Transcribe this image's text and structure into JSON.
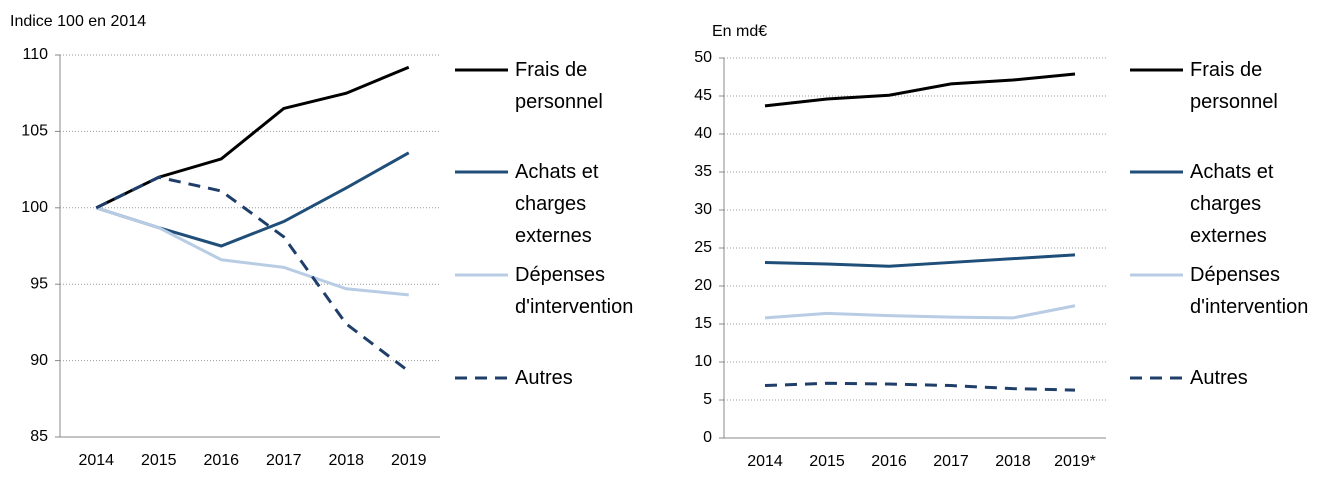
{
  "chart_data": [
    {
      "type": "line",
      "y_label": "Indice 100 en 2014",
      "categories": [
        "2014",
        "2015",
        "2016",
        "2017",
        "2018",
        "2019"
      ],
      "ylim": [
        85,
        110
      ],
      "yticks": [
        85,
        90,
        95,
        100,
        105,
        110
      ],
      "grid": true,
      "series": [
        {
          "name": "Frais de personnel",
          "color": "#000000",
          "values": [
            100,
            102,
            103.2,
            106.5,
            107.5,
            109.2
          ]
        },
        {
          "name": "Achats et charges externes",
          "color": "#1f4e79",
          "values": [
            100,
            98.7,
            97.5,
            99.1,
            101.3,
            103.6
          ]
        },
        {
          "name": "Dépenses d'intervention",
          "color": "#b8cce4",
          "values": [
            100,
            98.7,
            96.6,
            96.1,
            94.7,
            94.3
          ]
        },
        {
          "name": "Autres",
          "color": "#1f3f6a",
          "dashed": true,
          "values": [
            100,
            102,
            101.1,
            98.1,
            92.4,
            89.3
          ]
        }
      ]
    },
    {
      "type": "line",
      "y_label": "En md€",
      "categories": [
        "2014",
        "2015",
        "2016",
        "2017",
        "2018",
        "2019*"
      ],
      "ylim": [
        0,
        50
      ],
      "yticks": [
        0,
        5,
        10,
        15,
        20,
        25,
        30,
        35,
        40,
        45,
        50
      ],
      "grid": true,
      "series": [
        {
          "name": "Frais de personnel",
          "color": "#000000",
          "values": [
            43.7,
            44.6,
            45.1,
            46.6,
            47.1,
            47.9
          ]
        },
        {
          "name": "Achats et charges externes",
          "color": "#1f4e79",
          "values": [
            23.1,
            22.9,
            22.6,
            23.1,
            23.6,
            24.1
          ]
        },
        {
          "name": "Dépenses d'intervention",
          "color": "#b8cce4",
          "values": [
            15.8,
            16.4,
            16.1,
            15.9,
            15.8,
            17.4
          ]
        },
        {
          "name": "Autres",
          "color": "#1f3f6a",
          "dashed": true,
          "values": [
            6.9,
            7.2,
            7.1,
            6.9,
            6.5,
            6.3
          ]
        }
      ]
    }
  ]
}
